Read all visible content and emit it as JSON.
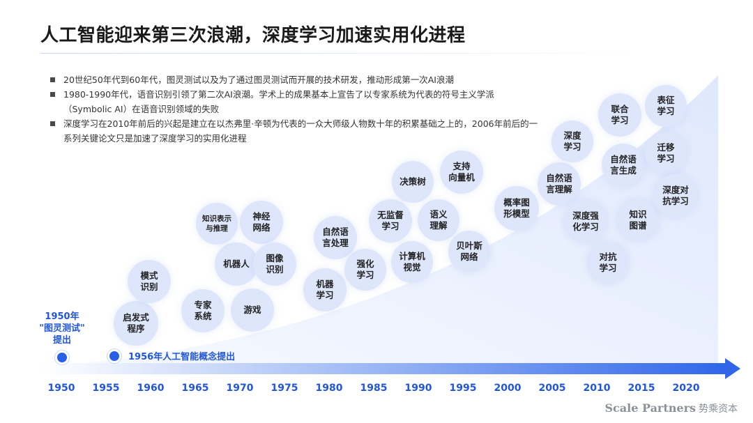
{
  "title": "人工智能迎来第三次浪潮，深度学习加速实用化进程",
  "bullets": [
    "20世纪50年代到60年代，图灵测试以及为了通过图灵测试而开展的技术研发，推动形成第一次AI浪潮",
    "1980-1990年代，语音识别引领了第二次AI浪潮。学术上的成果基本上宣告了以专家系统为代表的符号主义学派（Symbolic AI）在语音识别领域的失败",
    "深度学习在2010年前后的兴起是建立在以杰弗里·辛顿为代表的一众大师级人物数十年的积累基础之上的，2006年前后的一系列关键论文只是加速了深度学习的实用化进程"
  ],
  "bubbles": [
    "启发式\n程序",
    "模式\n识别",
    "专家\n系统",
    "游戏",
    "机器人",
    "知识表示\n与推理",
    "神经\n网络",
    "图像\n识别",
    "机器\n学习",
    "自然语\n言处理",
    "强化\n学习",
    "无监督\n学习",
    "计算机\n视觉",
    "决策树",
    "语义\n理解",
    "支持\n向量机",
    "贝叶斯\n网络",
    "概率图\n形模型",
    "自然语\n言理解",
    "深度\n学习",
    "深度强\n化学习",
    "对抗\n学习",
    "联合\n学习",
    "自然语\n言生成",
    "知识\n图谱",
    "表征\n学习",
    "迁移\n学习",
    "深度对\n抗学习"
  ],
  "events": {
    "e1950": "1950年\n\"图灵测试\"\n提出",
    "e1956": "1956年人工智能概念提出"
  },
  "years": [
    "1950",
    "1955",
    "1960",
    "1965",
    "1970",
    "1975",
    "1980",
    "1985",
    "1990",
    "1995",
    "2000",
    "2005",
    "2010",
    "2015",
    "2020"
  ],
  "brand": {
    "en": "Scale Partners",
    "cn": "势乘资本"
  },
  "colors": {
    "accent": "#2a5fe8",
    "bubble": "#dde6fb",
    "area": "#e3ebfc"
  }
}
